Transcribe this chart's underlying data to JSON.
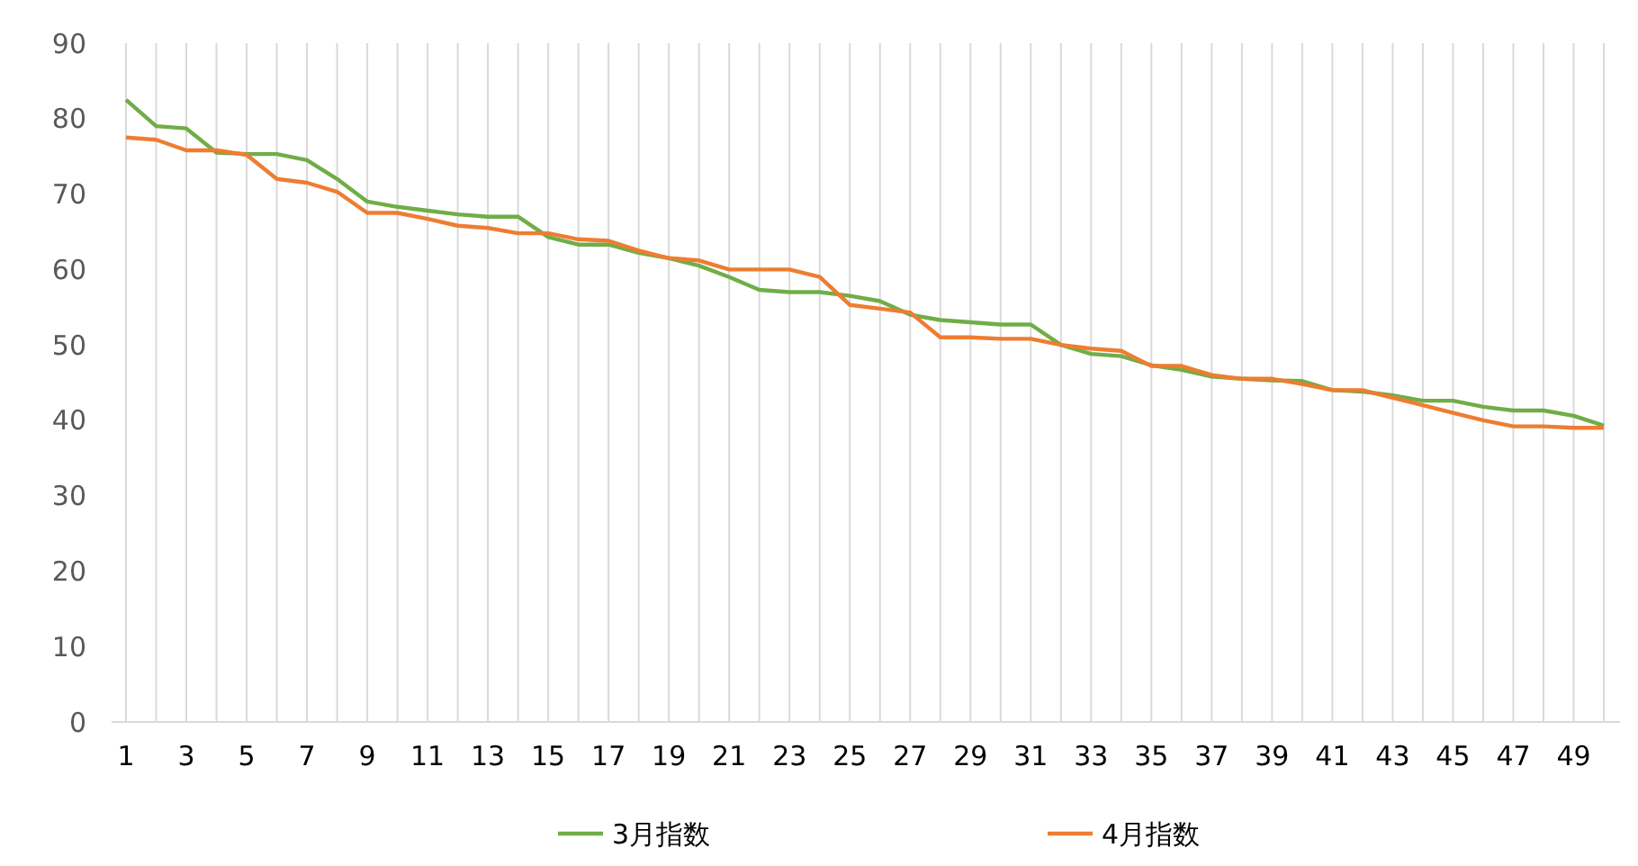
{
  "chart_data": {
    "type": "line",
    "x": [
      1,
      2,
      3,
      4,
      5,
      6,
      7,
      8,
      9,
      10,
      11,
      12,
      13,
      14,
      15,
      16,
      17,
      18,
      19,
      20,
      21,
      22,
      23,
      24,
      25,
      26,
      27,
      28,
      29,
      30,
      31,
      32,
      33,
      34,
      35,
      36,
      37,
      38,
      39,
      40,
      41,
      42,
      43,
      44,
      45,
      46,
      47,
      48,
      49,
      50
    ],
    "series": [
      {
        "name": "3月指数",
        "color": "#70ad47",
        "values": [
          82.5,
          79,
          78.7,
          75.5,
          75.3,
          75.3,
          74.5,
          72,
          69,
          68.3,
          67.8,
          67.3,
          67,
          67,
          64.3,
          63.3,
          63.3,
          62.2,
          61.5,
          60.5,
          59,
          57.3,
          57,
          57,
          56.5,
          55.8,
          54,
          53.3,
          53,
          52.7,
          52.7,
          50,
          48.8,
          48.5,
          47.3,
          46.7,
          45.8,
          45.5,
          45.3,
          45.2,
          44,
          43.8,
          43.3,
          42.6,
          42.6,
          41.8,
          41.3,
          41.3,
          40.6,
          39.3
        ]
      },
      {
        "name": "4月指数",
        "color": "#ed7d31",
        "values": [
          77.5,
          77.2,
          75.8,
          75.8,
          75.2,
          72,
          71.5,
          70.3,
          67.5,
          67.5,
          66.7,
          65.8,
          65.5,
          64.8,
          64.8,
          64,
          63.8,
          62.5,
          61.5,
          61.2,
          60,
          60,
          60,
          59,
          55.3,
          54.8,
          54.3,
          51,
          51,
          50.8,
          50.8,
          50,
          49.5,
          49.2,
          47.2,
          47.2,
          46,
          45.5,
          45.5,
          44.8,
          44,
          44,
          43,
          42,
          41,
          40,
          39.2,
          39.2,
          39,
          39
        ]
      }
    ],
    "xlim": [
      1,
      50
    ],
    "xticks": [
      1,
      {
        "value": 2,
        "label": null
      },
      3,
      {
        "value": 4,
        "label": null
      },
      5,
      {
        "value": 6,
        "label": null
      },
      7,
      {
        "value": 8,
        "label": null
      },
      9,
      {
        "value": 10,
        "label": null
      },
      11,
      {
        "value": 12,
        "label": null
      },
      13,
      {
        "value": 14,
        "label": null
      },
      15,
      {
        "value": 16,
        "label": null
      },
      17,
      {
        "value": 18,
        "label": null
      },
      19,
      {
        "value": 20,
        "label": null
      },
      21,
      {
        "value": 22,
        "label": null
      },
      23,
      {
        "value": 24,
        "label": null
      },
      25,
      {
        "value": 26,
        "label": null
      },
      27,
      {
        "value": 28,
        "label": null
      },
      29,
      {
        "value": 30,
        "label": null
      },
      31,
      {
        "value": 32,
        "label": null
      },
      33,
      {
        "value": 34,
        "label": null
      },
      35,
      {
        "value": 36,
        "label": null
      },
      37,
      {
        "value": 38,
        "label": null
      },
      39,
      {
        "value": 40,
        "label": null
      },
      41,
      {
        "value": 42,
        "label": null
      },
      43,
      {
        "value": 44,
        "label": null
      },
      45,
      {
        "value": 46,
        "label": null
      },
      47,
      {
        "value": 48,
        "label": null
      },
      49,
      {
        "value": 50,
        "label": null
      }
    ],
    "ylim": [
      0,
      90
    ],
    "yticks": [
      0,
      10,
      20,
      30,
      40,
      50,
      60,
      70,
      80,
      90
    ],
    "grid": "x",
    "legend": "bottom",
    "marker": "none",
    "line_style": "solid"
  }
}
